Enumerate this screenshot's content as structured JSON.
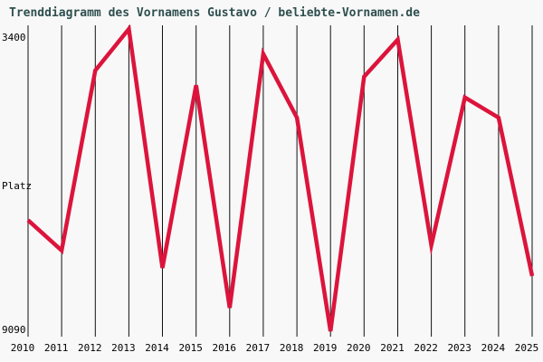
{
  "header": {
    "title": "Trenddiagramm des Vornamens Gustavo / beliebte-Vornamen.de"
  },
  "axis": {
    "y_top_label": "3400",
    "y_mid_label": "Platz",
    "y_bottom_label": "9090"
  },
  "colors": {
    "line": "#dc143c",
    "grid": "#111111",
    "title": "#2f4f4f",
    "axis_text": "#000000",
    "background": "#f8f8f8"
  },
  "chart_data": {
    "type": "line",
    "title": "Trenddiagramm des Vornamens Gustavo / beliebte-Vornamen.de",
    "x": [
      2010,
      2011,
      2012,
      2013,
      2014,
      2015,
      2016,
      2017,
      2018,
      2019,
      2020,
      2021,
      2022,
      2023,
      2024,
      2025
    ],
    "series": [
      {
        "name": "Gustavo",
        "values": [
          7000,
          7570,
          4180,
          3400,
          7900,
          4460,
          8650,
          3870,
          5070,
          9090,
          4300,
          3600,
          7470,
          4690,
          5070,
          8050
        ]
      }
    ],
    "xlabel": "",
    "ylabel": "Platz",
    "y_axis_inverted": true,
    "ylim_top": 3400,
    "ylim_bottom": 9090,
    "y_tick_labels": [
      "3400",
      "9090"
    ],
    "grid": "vertical gridline at every year, no horizontal gridlines",
    "legend": "none"
  }
}
